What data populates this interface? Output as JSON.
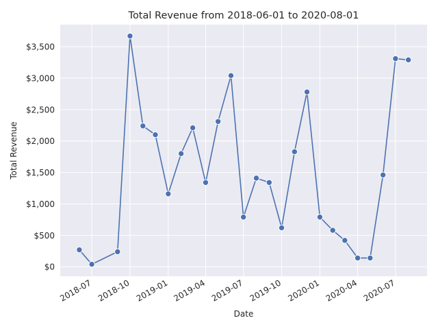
{
  "chart_data": {
    "type": "line",
    "title": "Total Revenue from 2018-06-01 to 2020-08-01",
    "xlabel": "Date",
    "ylabel": "Total Revenue",
    "ylim": [
      -150,
      3850
    ],
    "xlim": [
      "2018-04-16",
      "2020-09-15"
    ],
    "grid": true,
    "colors": {
      "background": "#eaeaf2",
      "grid": "#ffffff",
      "line": "#4c72b0",
      "marker_edge": "#ffffff"
    },
    "yticks": [
      0,
      500,
      1000,
      1500,
      2000,
      2500,
      3000,
      3500
    ],
    "ytick_labels": [
      "$0",
      "$500",
      "$1,000",
      "$1,500",
      "$2,000",
      "$2,500",
      "$3,000",
      "$3,500"
    ],
    "xticks": [
      "2018-07-01",
      "2018-10-01",
      "2019-01-01",
      "2019-04-01",
      "2019-07-01",
      "2019-10-01",
      "2020-01-01",
      "2020-04-01",
      "2020-07-01"
    ],
    "xtick_labels": [
      "2018-07",
      "2018-10",
      "2019-01",
      "2019-04",
      "2019-07",
      "2019-10",
      "2020-01",
      "2020-04",
      "2020-07"
    ],
    "series": [
      {
        "x": [
          "2018-06-01",
          "2018-07-01",
          "2018-09-01",
          "2018-10-01",
          "2018-11-01",
          "2018-12-01",
          "2019-01-01",
          "2019-02-01",
          "2019-03-01",
          "2019-04-01",
          "2019-05-01",
          "2019-06-01",
          "2019-07-01",
          "2019-08-01",
          "2019-09-01",
          "2019-10-01",
          "2019-11-01",
          "2019-12-01",
          "2020-01-01",
          "2020-02-01",
          "2020-03-01",
          "2020-04-01",
          "2020-05-01",
          "2020-06-01",
          "2020-07-01",
          "2020-08-01"
        ],
        "values": [
          270,
          40,
          240,
          3670,
          2240,
          2100,
          1160,
          1800,
          2210,
          1340,
          2310,
          3040,
          790,
          1410,
          1340,
          620,
          1830,
          2780,
          790,
          580,
          420,
          140,
          140,
          1460,
          3310,
          3290
        ]
      }
    ]
  }
}
